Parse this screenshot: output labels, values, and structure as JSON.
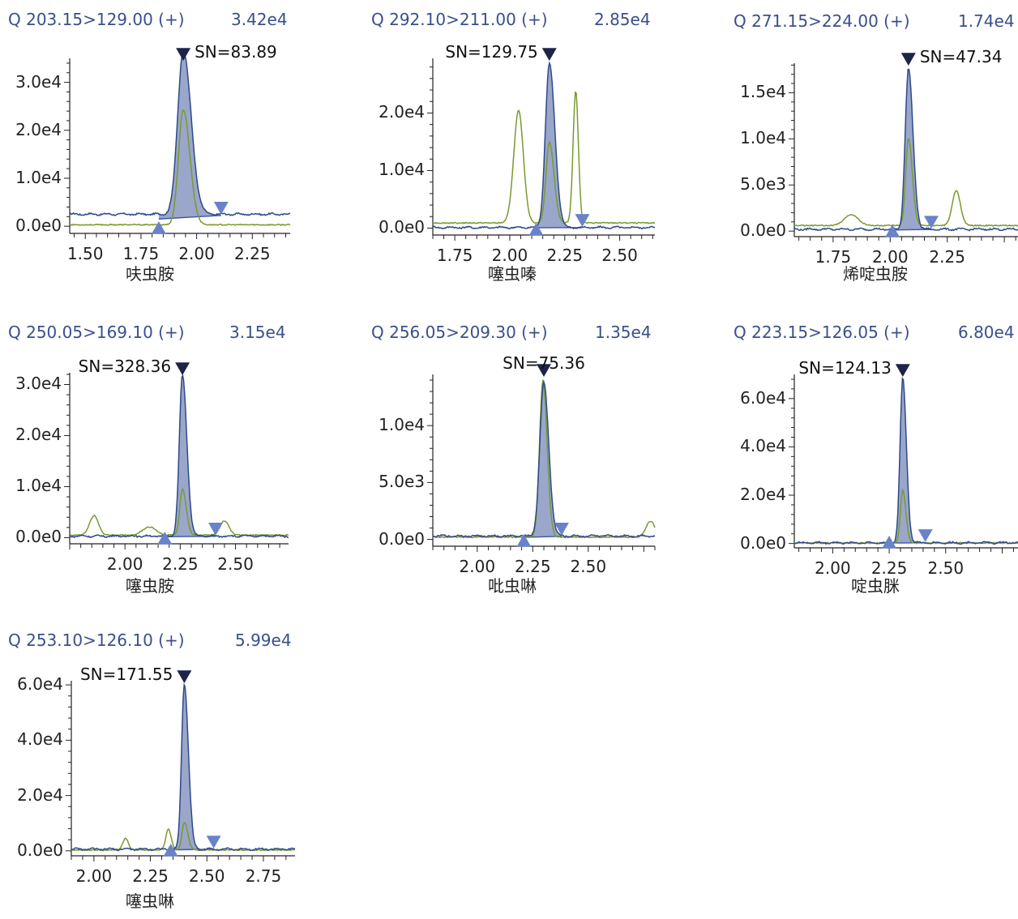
{
  "colors": {
    "header": "#3a4f8c",
    "trace_quant": "#2e4a8a",
    "trace_qual": "#7a9a2e",
    "peak_fill": "#8f9cc4",
    "peak_edge": "#3d56a8",
    "marker_start": "#6a82c8",
    "marker_apex": "#1e2348"
  },
  "chart_data": [
    {
      "type": "line",
      "transition": "Q 203.15>129.00 (+)",
      "max_intensity": "3.42e4",
      "compound": "呋虫胺",
      "sn_label": "SN=83.89",
      "xlim": [
        1.43,
        2.42
      ],
      "ylim": [
        -1500,
        35000
      ],
      "x_ticks": [
        1.5,
        1.75,
        2.0,
        2.25
      ],
      "x_tick_labels": [
        "1.50",
        "1.75",
        "2.00",
        "2.25"
      ],
      "y_ticks": [
        0,
        10000,
        20000,
        30000
      ],
      "y_tick_labels": [
        "0.0e0",
        "1.0e4",
        "2.0e4",
        "3.0e4"
      ],
      "peak": {
        "start": 1.83,
        "apex": 1.94,
        "end": 2.11,
        "height": 34200,
        "width_left": 0.025,
        "width_right": 0.035
      },
      "qual": {
        "height": 24000,
        "offset": 0.0
      },
      "extra_qual_peaks": [],
      "baseline_quant": 2500,
      "baseline_qual": 300
    },
    {
      "type": "line",
      "transition": "Q 292.10>211.00 (+)",
      "max_intensity": "2.85e4",
      "compound": "噻虫嗪",
      "sn_label": "SN=129.75",
      "xlim": [
        1.65,
        2.66
      ],
      "ylim": [
        -1200,
        29500
      ],
      "x_ticks": [
        1.75,
        2.0,
        2.25,
        2.5
      ],
      "x_tick_labels": [
        "1.75",
        "2.00",
        "2.25",
        "2.50"
      ],
      "y_ticks": [
        0,
        10000,
        20000
      ],
      "y_tick_labels": [
        "0.0e0",
        "1.0e4",
        "2.0e4"
      ],
      "peak": {
        "start": 2.12,
        "apex": 2.18,
        "end": 2.33,
        "height": 28500,
        "width_left": 0.018,
        "width_right": 0.025
      },
      "qual": {
        "height": 14000,
        "offset": 0.0
      },
      "extra_qual_peaks": [
        {
          "x": 2.04,
          "h": 19500,
          "w": 0.022
        },
        {
          "x": 2.3,
          "h": 23000,
          "w": 0.012
        }
      ],
      "baseline_quant": 100,
      "baseline_qual": 900
    },
    {
      "type": "line",
      "transition": "Q 271.15>224.00 (+)",
      "max_intensity": "1.74e4",
      "compound": "烯啶虫胺",
      "sn_label": "SN=47.34",
      "xlim": [
        1.58,
        2.56
      ],
      "ylim": [
        -600,
        18200
      ],
      "x_ticks": [
        1.75,
        2.0,
        2.25
      ],
      "x_tick_labels": [
        "1.75",
        "2.00",
        "2.25"
      ],
      "y_ticks": [
        0,
        5000,
        10000,
        15000
      ],
      "y_tick_labels": [
        "0.0e0",
        "5.0e3",
        "1.0e4",
        "1.5e4"
      ],
      "peak": {
        "start": 2.01,
        "apex": 2.08,
        "end": 2.18,
        "height": 17400,
        "width_left": 0.014,
        "width_right": 0.02
      },
      "qual": {
        "height": 9500,
        "offset": 0.0
      },
      "extra_qual_peaks": [
        {
          "x": 1.83,
          "h": 1200,
          "w": 0.03
        },
        {
          "x": 2.29,
          "h": 3800,
          "w": 0.018
        }
      ],
      "baseline_quant": 200,
      "baseline_qual": 600
    },
    {
      "type": "line",
      "transition": "Q 250.05>169.10 (+)",
      "max_intensity": "3.15e4",
      "compound": "噻虫胺",
      "sn_label": "SN=328.36",
      "xlim": [
        1.75,
        2.74
      ],
      "ylim": [
        -1200,
        32300
      ],
      "x_ticks": [
        2.0,
        2.25,
        2.5
      ],
      "x_tick_labels": [
        "2.00",
        "2.25",
        "2.50"
      ],
      "y_ticks": [
        0,
        10000,
        20000,
        30000
      ],
      "y_tick_labels": [
        "0.0e0",
        "1.0e4",
        "2.0e4",
        "3.0e4"
      ],
      "peak": {
        "start": 2.18,
        "apex": 2.26,
        "end": 2.41,
        "height": 31500,
        "width_left": 0.014,
        "width_right": 0.02
      },
      "qual": {
        "height": 9000,
        "offset": 0.0
      },
      "extra_qual_peaks": [
        {
          "x": 1.86,
          "h": 3800,
          "w": 0.02
        },
        {
          "x": 2.11,
          "h": 1600,
          "w": 0.03
        },
        {
          "x": 2.45,
          "h": 2800,
          "w": 0.02
        }
      ],
      "baseline_quant": 300,
      "baseline_qual": 500
    },
    {
      "type": "line",
      "transition": "Q 256.05>209.30 (+)",
      "max_intensity": "1.35e4",
      "compound": "吡虫啉",
      "sn_label": "SN=75.36",
      "xlim": [
        1.8,
        2.8
      ],
      "ylim": [
        -600,
        14500
      ],
      "x_ticks": [
        2.0,
        2.25,
        2.5
      ],
      "x_tick_labels": [
        "2.00",
        "2.25",
        "2.50"
      ],
      "y_ticks": [
        0,
        5000,
        10000
      ],
      "y_tick_labels": [
        "0.0e0",
        "5.0e3",
        "1.0e4"
      ],
      "peak": {
        "start": 2.21,
        "apex": 2.3,
        "end": 2.38,
        "height": 13500,
        "width_left": 0.018,
        "width_right": 0.022
      },
      "qual": {
        "height": 13800,
        "offset": -0.004
      },
      "extra_qual_peaks": [
        {
          "x": 2.78,
          "h": 1400,
          "w": 0.02
        }
      ],
      "baseline_quant": 300,
      "baseline_qual": 200
    },
    {
      "type": "line",
      "transition": "Q 223.15>126.05 (+)",
      "max_intensity": "6.80e4",
      "compound": "啶虫脒",
      "sn_label": "SN=124.13",
      "xlim": [
        1.83,
        2.82
      ],
      "ylim": [
        -1800,
        70000
      ],
      "x_ticks": [
        2.0,
        2.25,
        2.5
      ],
      "x_tick_labels": [
        "2.00",
        "2.25",
        "2.50"
      ],
      "y_ticks": [
        0,
        20000,
        40000,
        60000
      ],
      "y_tick_labels": [
        "0.0e0",
        "2.0e4",
        "4.0e4",
        "6.0e4"
      ],
      "peak": {
        "start": 2.25,
        "apex": 2.31,
        "end": 2.41,
        "height": 68000,
        "width_left": 0.012,
        "width_right": 0.016
      },
      "qual": {
        "height": 22000,
        "offset": 0.0
      },
      "extra_qual_peaks": [],
      "baseline_quant": 300,
      "baseline_qual": 200
    },
    {
      "type": "line",
      "transition": "Q 253.10>126.10 (+)",
      "max_intensity": "5.99e4",
      "compound": "噻虫啉",
      "sn_label": "SN=171.55",
      "xlim": [
        1.9,
        2.89
      ],
      "ylim": [
        -1800,
        61500
      ],
      "x_ticks": [
        2.0,
        2.25,
        2.5,
        2.75
      ],
      "x_tick_labels": [
        "2.00",
        "2.25",
        "2.50",
        "2.75"
      ],
      "y_ticks": [
        0,
        20000,
        40000,
        60000
      ],
      "y_tick_labels": [
        "0.0e0",
        "2.0e4",
        "4.0e4",
        "6.0e4"
      ],
      "peak": {
        "start": 2.34,
        "apex": 2.4,
        "end": 2.53,
        "height": 59900,
        "width_left": 0.012,
        "width_right": 0.018
      },
      "qual": {
        "height": 10000,
        "offset": 0.0
      },
      "extra_qual_peaks": [
        {
          "x": 2.14,
          "h": 4200,
          "w": 0.012
        },
        {
          "x": 2.33,
          "h": 7500,
          "w": 0.012
        }
      ],
      "baseline_quant": 600,
      "baseline_qual": 300
    }
  ]
}
